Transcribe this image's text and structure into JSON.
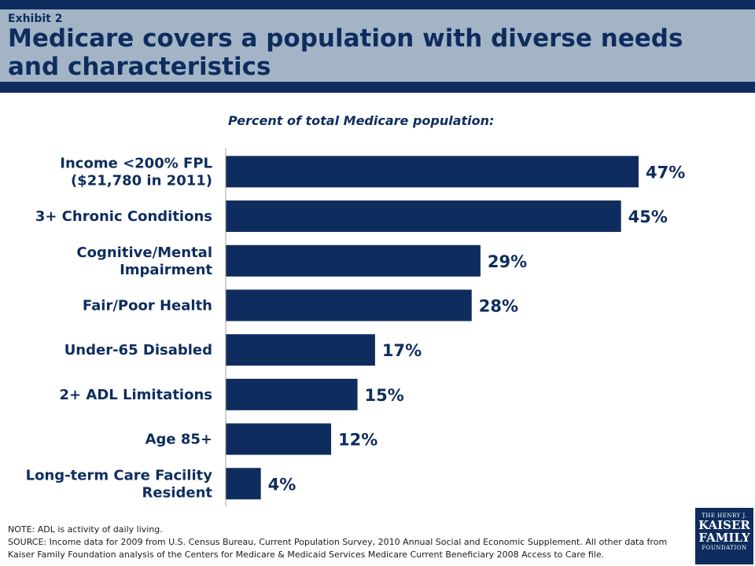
{
  "header": {
    "exhibit": "Exhibit 2",
    "title": "Medicare covers a population with diverse needs and characteristics"
  },
  "chart_data": {
    "type": "bar",
    "orientation": "horizontal",
    "subtitle": "Percent of total Medicare population:",
    "categories": [
      [
        "Income <200% FPL",
        "($21,780 in 2011)"
      ],
      [
        "3+ Chronic Conditions"
      ],
      [
        "Cognitive/Mental",
        "Impairment"
      ],
      [
        "Fair/Poor Health"
      ],
      [
        "Under-65 Disabled"
      ],
      [
        "2+ ADL Limitations"
      ],
      [
        "Age 85+"
      ],
      [
        "Long-term Care Facility",
        "Resident"
      ]
    ],
    "values": [
      47,
      45,
      29,
      28,
      17,
      15,
      12,
      4
    ],
    "value_labels": [
      "47%",
      "45%",
      "29%",
      "28%",
      "17%",
      "15%",
      "12%",
      "4%"
    ],
    "xlim": [
      0,
      50
    ],
    "grid": false,
    "bar_color": "#0e2d5e"
  },
  "notes": {
    "note": "NOTE: ADL is activity of daily living.",
    "source_line1": "SOURCE: Income data for 2009 from U.S. Census Bureau, Current Population Survey, 2010 Annual Social and Economic Supplement.  All other data from",
    "source_line2": "Kaiser Family Foundation analysis of the Centers for Medicare & Medicaid Services Medicare Current Beneficiary 2008 Access to Care file."
  },
  "logo": {
    "line1": "THE HENRY J.",
    "line2": "KAISER",
    "line3": "FAMILY",
    "line4": "FOUNDATION"
  }
}
